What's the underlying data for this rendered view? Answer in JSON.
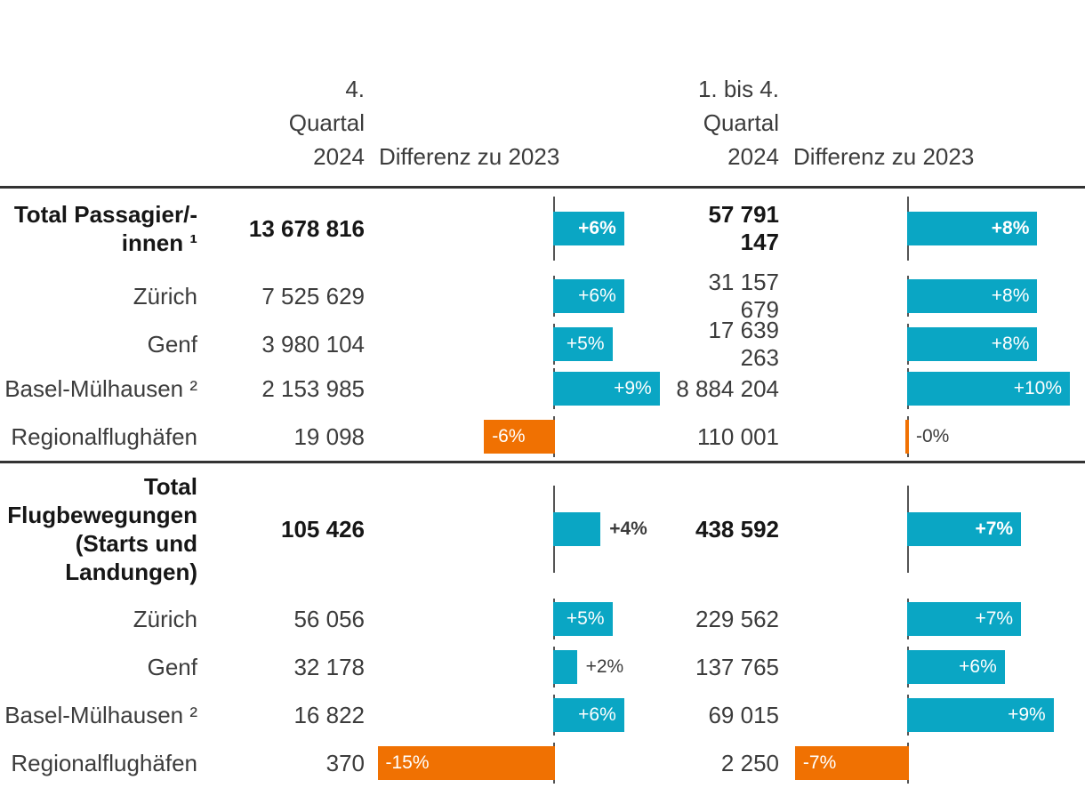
{
  "header": {
    "q4_label": "4.\nQuartal\n2024",
    "diff_label_1": "Differenz zu 2023",
    "ytd_label": "1. bis 4.\nQuartal\n2024",
    "diff_label_2": "Differenz zu 2023"
  },
  "colors": {
    "positive": "#0aa6c4",
    "negative": "#f07102",
    "text": "#3c3c3c",
    "text_bold": "#161616",
    "rule": "#333333",
    "axis": "#555555",
    "bar_label": "#ffffff"
  },
  "bar_scale": {
    "col1": 13.3,
    "col2": 18.3
  },
  "sections": [
    {
      "name": "passagiere",
      "rows": [
        {
          "label": "Total Passagier/-\ninnen ¹",
          "bold": true,
          "q4": "13 678 816",
          "diff1": {
            "label": "+6%",
            "pct": 6,
            "neg": false,
            "inside": true,
            "bold": true
          },
          "ytd": "57 791 147",
          "diff2": {
            "label": "+8%",
            "pct": 8,
            "neg": false,
            "inside": true,
            "bold": true
          }
        },
        {
          "label": "Zürich",
          "q4": "7 525 629",
          "diff1": {
            "label": "+6%",
            "pct": 6,
            "neg": false,
            "inside": true
          },
          "ytd": "31 157 679",
          "diff2": {
            "label": "+8%",
            "pct": 8,
            "neg": false,
            "inside": true
          }
        },
        {
          "label": "Genf",
          "q4": "3 980 104",
          "diff1": {
            "label": "+5%",
            "pct": 5,
            "neg": false,
            "inside": true
          },
          "ytd": "17 639 263",
          "diff2": {
            "label": "+8%",
            "pct": 8,
            "neg": false,
            "inside": true
          }
        },
        {
          "label": "Basel-Mülhausen ²",
          "q4": "2 153 985",
          "diff1": {
            "label": "+9%",
            "pct": 9,
            "neg": false,
            "inside": true
          },
          "ytd": "8 884 204",
          "diff2": {
            "label": "+10%",
            "pct": 10,
            "neg": false,
            "inside": true
          }
        },
        {
          "label": "Regionalflughäfen",
          "q4": "19 098",
          "diff1": {
            "label": "-6%",
            "pct": 6,
            "neg": true,
            "inside": true
          },
          "ytd": "110 001",
          "diff2": {
            "label": "-0%",
            "pct": 0,
            "neg": true,
            "inside": false
          }
        }
      ]
    },
    {
      "name": "flugbewegungen",
      "rows": [
        {
          "label": "Total\nFlugbewegungen\n(Starts und\nLandungen)",
          "bold": true,
          "q4": "105 426",
          "diff1": {
            "label": "+4%",
            "pct": 4,
            "neg": false,
            "inside": false,
            "bold": true
          },
          "ytd": "438 592",
          "diff2": {
            "label": "+7%",
            "pct": 7,
            "neg": false,
            "inside": true,
            "bold": true
          }
        },
        {
          "label": "Zürich",
          "q4": "56 056",
          "diff1": {
            "label": "+5%",
            "pct": 5,
            "neg": false,
            "inside": true
          },
          "ytd": "229 562",
          "diff2": {
            "label": "+7%",
            "pct": 7,
            "neg": false,
            "inside": true
          }
        },
        {
          "label": "Genf",
          "q4": "32 178",
          "diff1": {
            "label": "+2%",
            "pct": 2,
            "neg": false,
            "inside": false
          },
          "ytd": "137 765",
          "diff2": {
            "label": "+6%",
            "pct": 6,
            "neg": false,
            "inside": true
          }
        },
        {
          "label": "Basel-Mülhausen ²",
          "q4": "16 822",
          "diff1": {
            "label": "+6%",
            "pct": 6,
            "neg": false,
            "inside": true
          },
          "ytd": "69 015",
          "diff2": {
            "label": "+9%",
            "pct": 9,
            "neg": false,
            "inside": true
          }
        },
        {
          "label": "Regionalflughäfen",
          "q4": "370",
          "diff1": {
            "label": "-15%",
            "pct": 15,
            "neg": true,
            "inside": true
          },
          "ytd": "2 250",
          "diff2": {
            "label": "-7%",
            "pct": 7,
            "neg": true,
            "inside": true
          }
        }
      ]
    }
  ],
  "chart_data": {
    "type": "bar",
    "title": "",
    "categories": [
      "Total Passagier/-innen ¹",
      "Zürich",
      "Genf",
      "Basel-Mülhausen ²",
      "Regionalflughäfen",
      "Total Flugbewegungen (Starts und Landungen)",
      "Zürich",
      "Genf",
      "Basel-Mülhausen ²",
      "Regionalflughäfen"
    ],
    "series": [
      {
        "name": "4. Quartal 2024",
        "values": [
          13678816,
          7525629,
          3980104,
          2153985,
          19098,
          105426,
          56056,
          32178,
          16822,
          370
        ]
      },
      {
        "name": "Differenz zu 2023 (4. Quartal), %",
        "values": [
          6,
          6,
          5,
          9,
          -6,
          4,
          5,
          2,
          6,
          -15
        ]
      },
      {
        "name": "1. bis 4. Quartal 2024",
        "values": [
          57791147,
          31157679,
          17639263,
          8884204,
          110001,
          438592,
          229562,
          137765,
          69015,
          2250
        ]
      },
      {
        "name": "Differenz zu 2023 (1. bis 4. Quartal), %",
        "values": [
          8,
          8,
          8,
          10,
          0,
          7,
          7,
          6,
          9,
          -7
        ]
      }
    ],
    "layout": {
      "orientation": "horizontal",
      "positive_color": "#0aa6c4",
      "negative_color": "#f07102",
      "grid": false,
      "legend": false
    }
  }
}
